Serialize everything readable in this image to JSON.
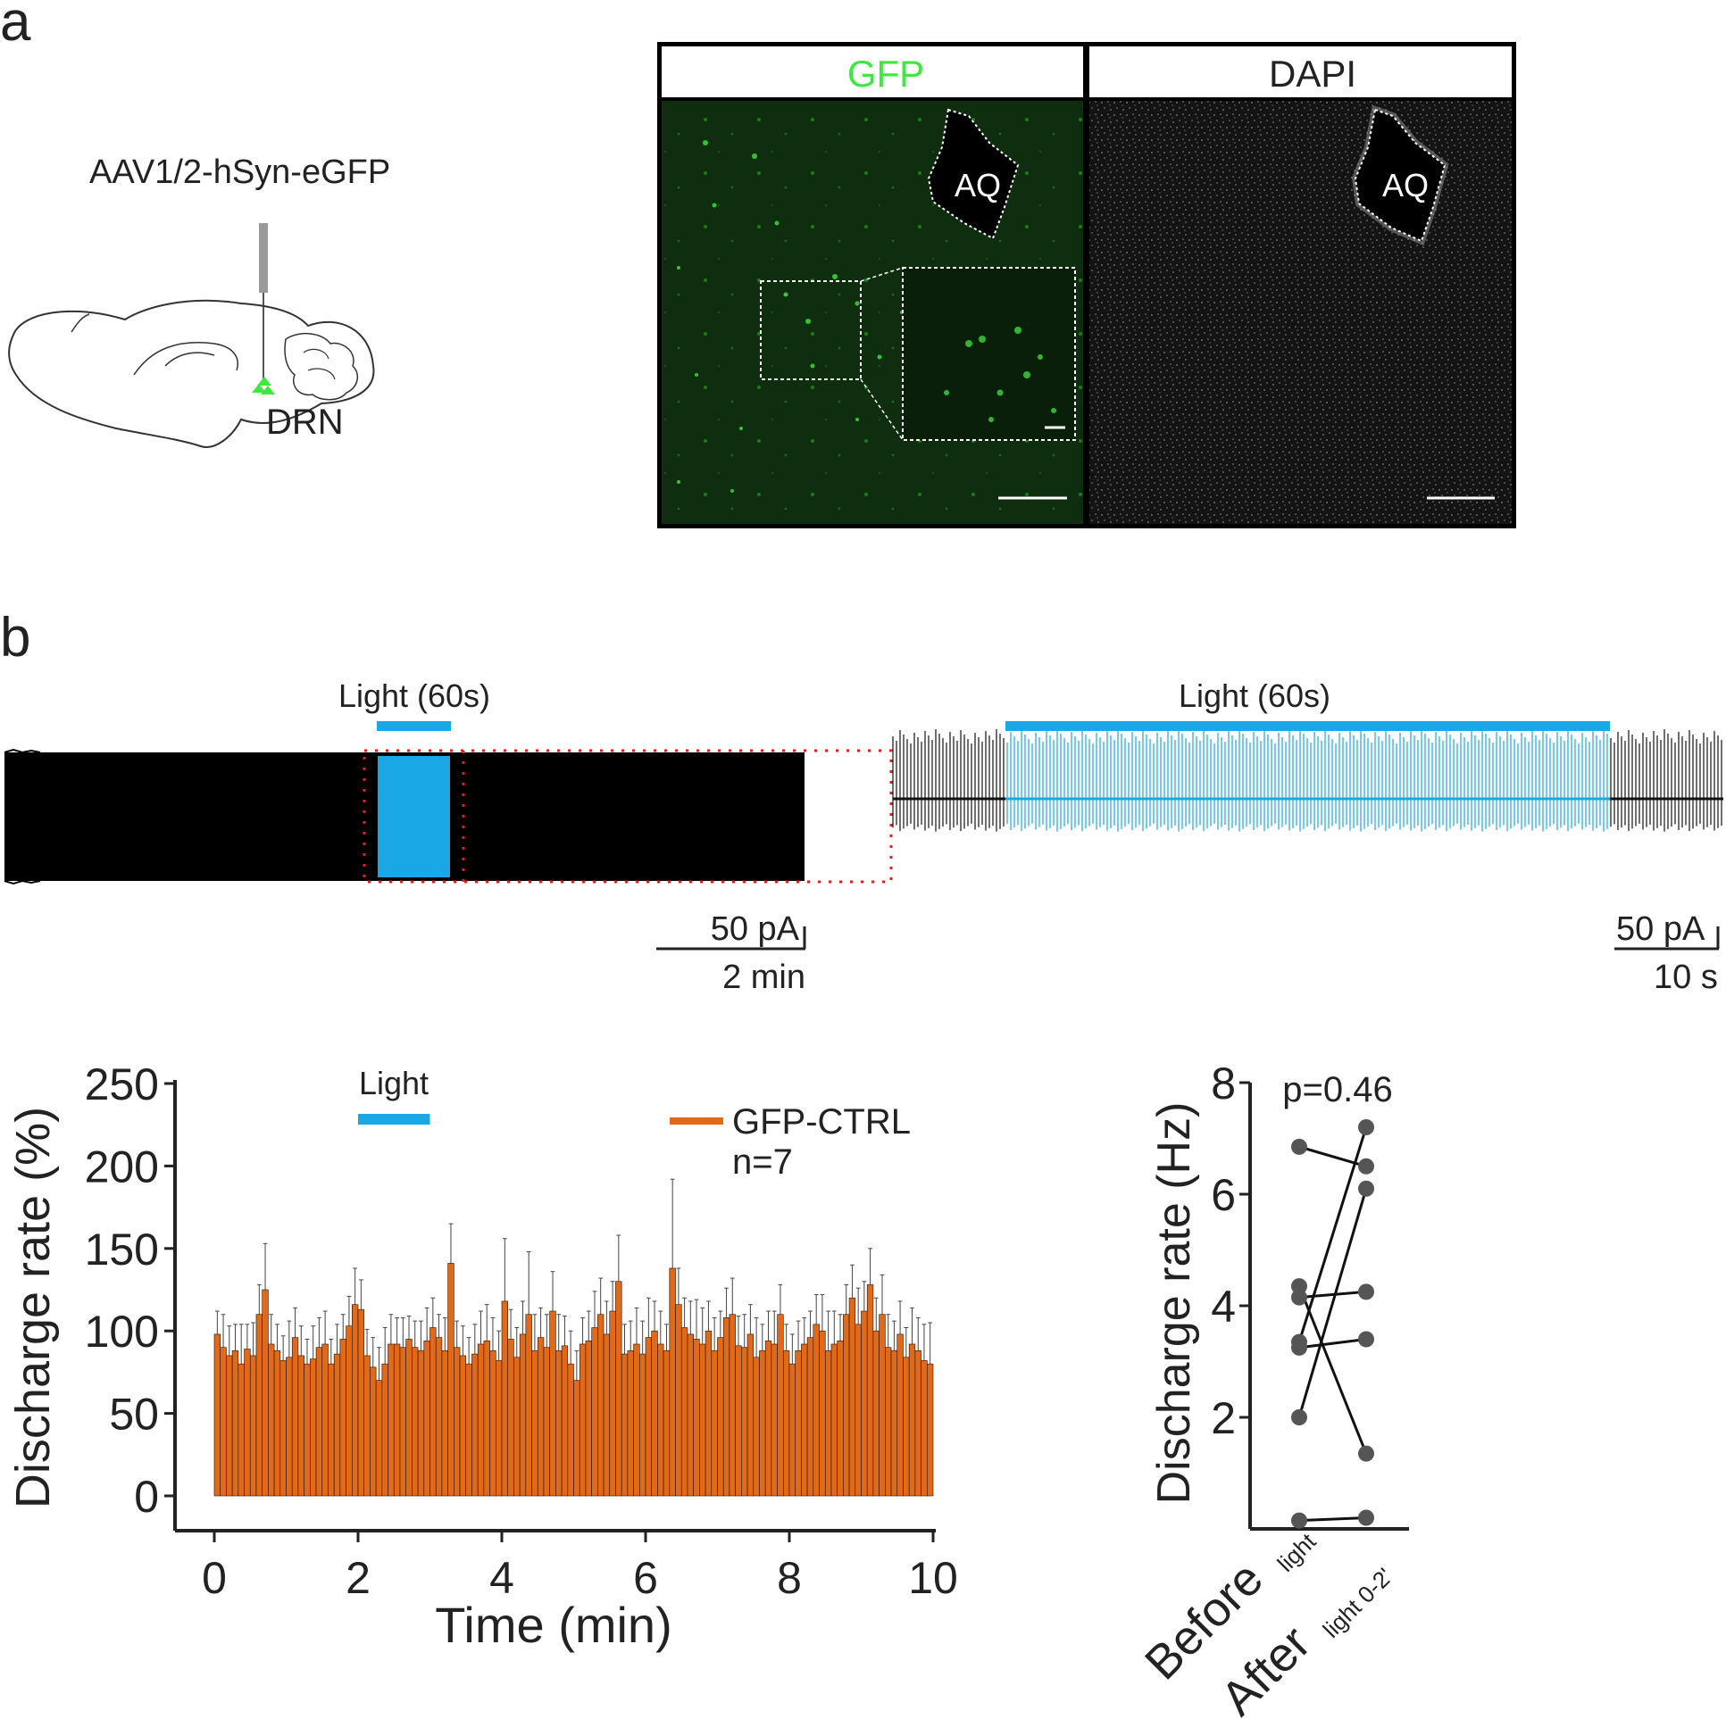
{
  "panel_a": {
    "label": "a",
    "vector_label": "AAV1/2-hSyn-eGFP",
    "region_label": "DRN",
    "gfp_title": "GFP",
    "dapi_title": "DAPI",
    "aq_label": "AQ",
    "colors": {
      "gfp": "#3ee83e",
      "gfp_bg": "#0d2a0d",
      "dapi_bg": "#141414",
      "black": "#000000"
    }
  },
  "panel_b": {
    "label": "b",
    "trace_left": {
      "light_label": "Light (60s)",
      "scale_current": "50 pA",
      "scale_time": "2 min"
    },
    "trace_right": {
      "light_label": "Light (60s)",
      "scale_current": "50 pA",
      "scale_time": "10 s"
    },
    "colors": {
      "light": "#1aa7e6",
      "trace": "#000000",
      "zoom_box": "#e02020",
      "bar": "#e06a1a"
    }
  },
  "chart_data": [
    {
      "type": "bar",
      "title": "",
      "xlabel": "Time (min)",
      "ylabel": "Discharge rate (%)",
      "xlim": [
        0,
        10
      ],
      "ylim": [
        0,
        250
      ],
      "xticks": [
        "0",
        "2",
        "4",
        "6",
        "8",
        "10"
      ],
      "yticks": [
        "0",
        "50",
        "100",
        "150",
        "200",
        "250"
      ],
      "light_label": "Light",
      "light_interval_min": [
        2,
        3
      ],
      "legend": {
        "label": "GFP-CTRL",
        "n_label": "n=7",
        "placement": "top-right"
      },
      "bin_width_min": 0.1,
      "series": [
        {
          "name": "GFP-CTRL",
          "values": [
            98,
            90,
            85,
            88,
            80,
            89,
            85,
            110,
            125,
            92,
            88,
            82,
            84,
            96,
            85,
            80,
            83,
            90,
            92,
            80,
            86,
            95,
            103,
            116,
            113,
            85,
            78,
            70,
            80,
            92,
            92,
            90,
            95,
            90,
            88,
            94,
            102,
            96,
            88,
            141,
            90,
            85,
            80,
            86,
            92,
            94,
            88,
            82,
            118,
            95,
            84,
            98,
            110,
            88,
            96,
            90,
            112,
            88,
            91,
            80,
            70,
            92,
            94,
            102,
            110,
            98,
            112,
            130,
            86,
            88,
            92,
            86,
            96,
            100,
            92,
            88,
            138,
            116,
            102,
            98,
            95,
            92,
            100,
            88,
            96,
            108,
            110,
            91,
            90,
            98,
            84,
            88,
            94,
            92,
            110,
            88,
            80,
            88,
            92,
            96,
            104,
            100,
            88,
            92,
            94,
            110,
            120,
            104,
            112,
            128,
            100,
            110,
            90,
            88,
            98,
            84,
            92,
            88,
            82,
            80
          ],
          "errors": [
            14,
            20,
            18,
            16,
            24,
            15,
            20,
            18,
            28,
            18,
            16,
            15,
            22,
            18,
            18,
            15,
            20,
            18,
            20,
            15,
            18,
            15,
            18,
            22,
            18,
            16,
            18,
            20,
            22,
            18,
            16,
            18,
            14,
            16,
            18,
            20,
            18,
            14,
            20,
            24,
            16,
            18,
            16,
            18,
            20,
            22,
            20,
            18,
            38,
            18,
            18,
            20,
            38,
            22,
            18,
            20,
            24,
            22,
            18,
            20,
            18,
            16,
            18,
            22,
            22,
            20,
            18,
            28,
            18,
            18,
            22,
            20,
            24,
            18,
            20,
            16,
            54,
            22,
            18,
            20,
            24,
            22,
            18,
            20,
            16,
            18,
            22,
            18,
            20,
            18,
            24,
            16,
            18,
            20,
            18,
            16,
            18,
            18,
            16,
            16,
            18,
            22,
            24,
            20,
            16,
            18,
            20,
            22,
            18,
            22,
            20,
            24,
            20,
            18,
            20,
            18,
            22,
            20,
            22,
            25
          ]
        }
      ]
    },
    {
      "type": "scatter",
      "title": "",
      "annotation": "p=0.46",
      "ylabel": "Discharge rate (Hz)",
      "ylim": [
        0,
        8
      ],
      "yticks": [
        "2",
        "4",
        "6",
        "8"
      ],
      "categories": [
        "Before",
        "After"
      ],
      "category_subscripts": [
        "light",
        "light 0-2'"
      ],
      "pairs": [
        [
          6.85,
          6.5
        ],
        [
          4.35,
          1.35
        ],
        [
          4.15,
          4.25
        ],
        [
          3.35,
          7.2
        ],
        [
          3.25,
          3.4
        ],
        [
          2.0,
          6.1
        ],
        [
          0.15,
          0.2
        ]
      ]
    }
  ]
}
